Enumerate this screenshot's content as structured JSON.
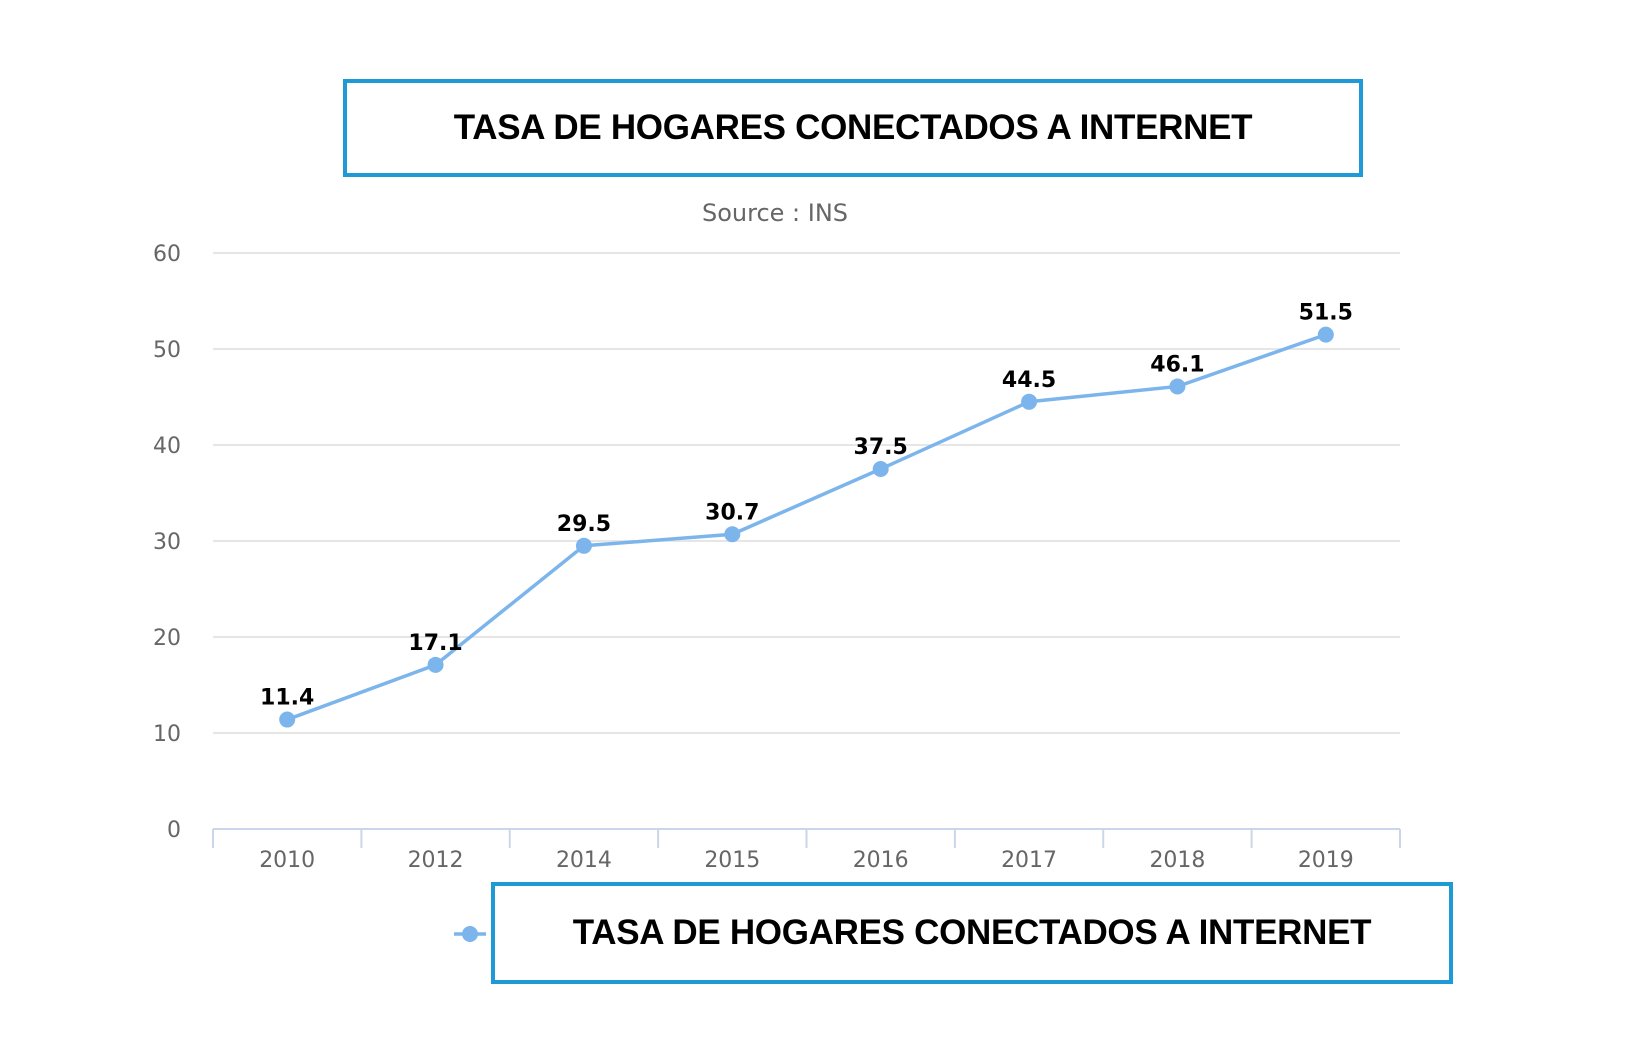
{
  "header": {
    "title": "TASA DE HOGARES CONECTADOS A INTERNET"
  },
  "chart_data": {
    "type": "line",
    "title": "TASA DE HOGARES CONECTADOS A INTERNET",
    "subtitle": "Source : INS",
    "categories": [
      "2010",
      "2012",
      "2014",
      "2015",
      "2016",
      "2017",
      "2018",
      "2019"
    ],
    "series": [
      {
        "name": "TASA DE HOGARES CONECTADOS A INTERNET",
        "values": [
          11.4,
          17.1,
          29.5,
          30.7,
          37.5,
          44.5,
          46.1,
          51.5
        ],
        "color": "#7cb5ec"
      }
    ],
    "yticks": [
      0,
      10,
      20,
      30,
      40,
      50,
      60
    ],
    "ylim": [
      0,
      60
    ],
    "grid": true,
    "data_labels": true,
    "legend_position": "bottom-center",
    "xlabel": "",
    "ylabel": ""
  }
}
